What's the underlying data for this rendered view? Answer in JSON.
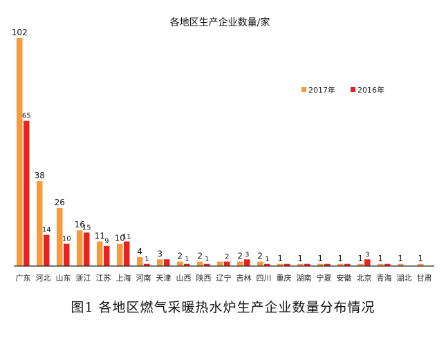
{
  "caption": "图1  各地区燃气采暖热水炉生产企业数量分布情况",
  "chart_data": {
    "type": "bar",
    "title": "各地区生产企业数量/家",
    "xlabel": "",
    "ylabel": "",
    "ylim": [
      0,
      102
    ],
    "grid": false,
    "legend_position": "top-right",
    "categories": [
      "广东",
      "河北",
      "山东",
      "浙江",
      "江苏",
      "上海",
      "河南",
      "天津",
      "山西",
      "陕西",
      "辽宁",
      "吉林",
      "四川",
      "重庆",
      "湖南",
      "宁夏",
      "安徽",
      "北京",
      "青海",
      "湖北",
      "甘肃"
    ],
    "series": [
      {
        "name": "2017年",
        "color": "#F79A3E",
        "values": [
          102,
          38,
          26,
          16,
          11,
          10,
          4,
          3,
          2,
          2,
          2,
          2,
          2,
          1,
          1,
          1,
          1,
          1,
          1,
          1,
          1
        ],
        "labels": [
          "102",
          "38",
          "26",
          "16",
          "11",
          "10",
          "4",
          "3",
          "2",
          "2",
          "",
          "2",
          "2",
          "1",
          "1",
          "1",
          "1",
          "1",
          "1",
          "1",
          "1"
        ]
      },
      {
        "name": "2016年",
        "color": "#E8231F",
        "values": [
          65,
          14,
          10,
          15,
          9,
          11,
          1,
          3,
          1,
          1,
          2,
          3,
          1,
          1,
          1,
          1,
          1,
          3,
          1,
          0,
          0
        ],
        "labels": [
          "65",
          "14",
          "10",
          "15",
          "9",
          "11",
          "1",
          "",
          "1",
          "1",
          "2",
          "3",
          "1",
          "",
          "",
          "",
          "",
          "3",
          "",
          "",
          ""
        ]
      }
    ]
  }
}
